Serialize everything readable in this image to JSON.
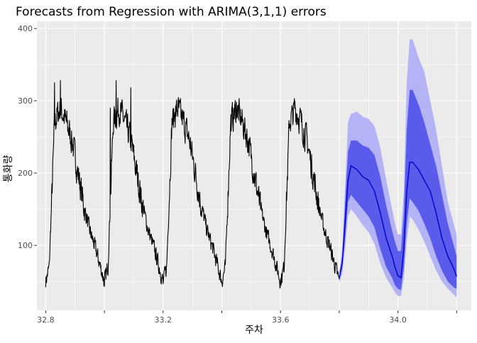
{
  "chart_data": {
    "type": "line",
    "title": "Forecasts from Regression with ARIMA(3,1,1) errors",
    "xlabel": "주차",
    "ylabel": "통화량",
    "xlim": [
      32.77,
      34.25
    ],
    "ylim": [
      10,
      410
    ],
    "x_ticks": [
      32.8,
      33.0,
      33.2,
      33.4,
      33.6,
      33.8,
      34.0,
      34.2
    ],
    "x_tick_labels": [
      "32.8",
      "",
      "33.2",
      "",
      "33.6",
      "",
      "34.0",
      ""
    ],
    "y_ticks": [
      100,
      200,
      300,
      400
    ],
    "y_tick_labels": [
      "100",
      "200",
      "300",
      "400"
    ],
    "grid": true,
    "legend": "none",
    "colors": {
      "background": "#ebebeb",
      "grid": "#ffffff",
      "history": "#000000",
      "forecast": "#0000cc",
      "band_80": "#5a5aeb",
      "band_95": "#b3b3f5"
    },
    "history": {
      "x_start": 32.8,
      "x_end": 33.8,
      "cycle_start": 32.8,
      "cycle_length": 0.2,
      "cycle_profile_x": [
        0,
        0.012,
        0.022,
        0.03,
        0.05,
        0.07,
        0.09,
        0.11,
        0.13,
        0.15,
        0.17,
        0.19,
        0.2
      ],
      "cycle_profile_y": [
        50,
        70,
        180,
        270,
        290,
        270,
        245,
        200,
        155,
        120,
        95,
        65,
        50
      ],
      "noise_amplitude": 18,
      "peak_highlights_x": [
        32.83,
        32.85,
        33.02,
        33.04,
        33.09,
        33.24,
        33.43,
        33.64
      ],
      "peak_highlights_y": [
        325,
        328,
        290,
        328,
        318,
        284,
        270,
        290
      ],
      "trough_highlights_x": [
        32.8,
        33.0,
        33.2,
        33.4,
        33.6,
        33.8
      ],
      "trough_highlights_y": [
        42,
        43,
        47,
        48,
        52,
        53
      ]
    },
    "forecast": {
      "x": [
        33.8,
        33.81,
        33.82,
        33.83,
        33.84,
        33.86,
        33.88,
        33.9,
        33.92,
        33.94,
        33.96,
        33.98,
        33.99,
        34.0,
        34.01,
        34.02,
        34.03,
        34.04,
        34.05,
        34.07,
        34.09,
        34.11,
        34.13,
        34.15,
        34.17,
        34.19,
        34.2
      ],
      "mean": [
        55,
        75,
        130,
        190,
        210,
        205,
        195,
        190,
        175,
        145,
        110,
        85,
        70,
        58,
        55,
        95,
        175,
        215,
        215,
        205,
        190,
        175,
        145,
        110,
        85,
        68,
        57
      ],
      "lo80": [
        52,
        68,
        110,
        160,
        170,
        160,
        150,
        140,
        125,
        95,
        70,
        55,
        45,
        40,
        38,
        68,
        130,
        165,
        160,
        148,
        130,
        110,
        85,
        65,
        50,
        42,
        40
      ],
      "hi80": [
        58,
        85,
        160,
        230,
        245,
        245,
        238,
        235,
        225,
        195,
        155,
        120,
        105,
        92,
        92,
        145,
        260,
        315,
        315,
        295,
        270,
        240,
        210,
        170,
        130,
        100,
        85
      ],
      "lo95": [
        48,
        60,
        95,
        140,
        150,
        140,
        128,
        118,
        102,
        75,
        55,
        42,
        35,
        30,
        30,
        55,
        105,
        140,
        136,
        122,
        105,
        85,
        65,
        50,
        40,
        32,
        28
      ],
      "hi95": [
        62,
        95,
        180,
        270,
        282,
        285,
        278,
        275,
        265,
        235,
        190,
        150,
        130,
        115,
        115,
        175,
        325,
        385,
        385,
        360,
        340,
        300,
        260,
        210,
        160,
        130,
        115
      ]
    }
  }
}
